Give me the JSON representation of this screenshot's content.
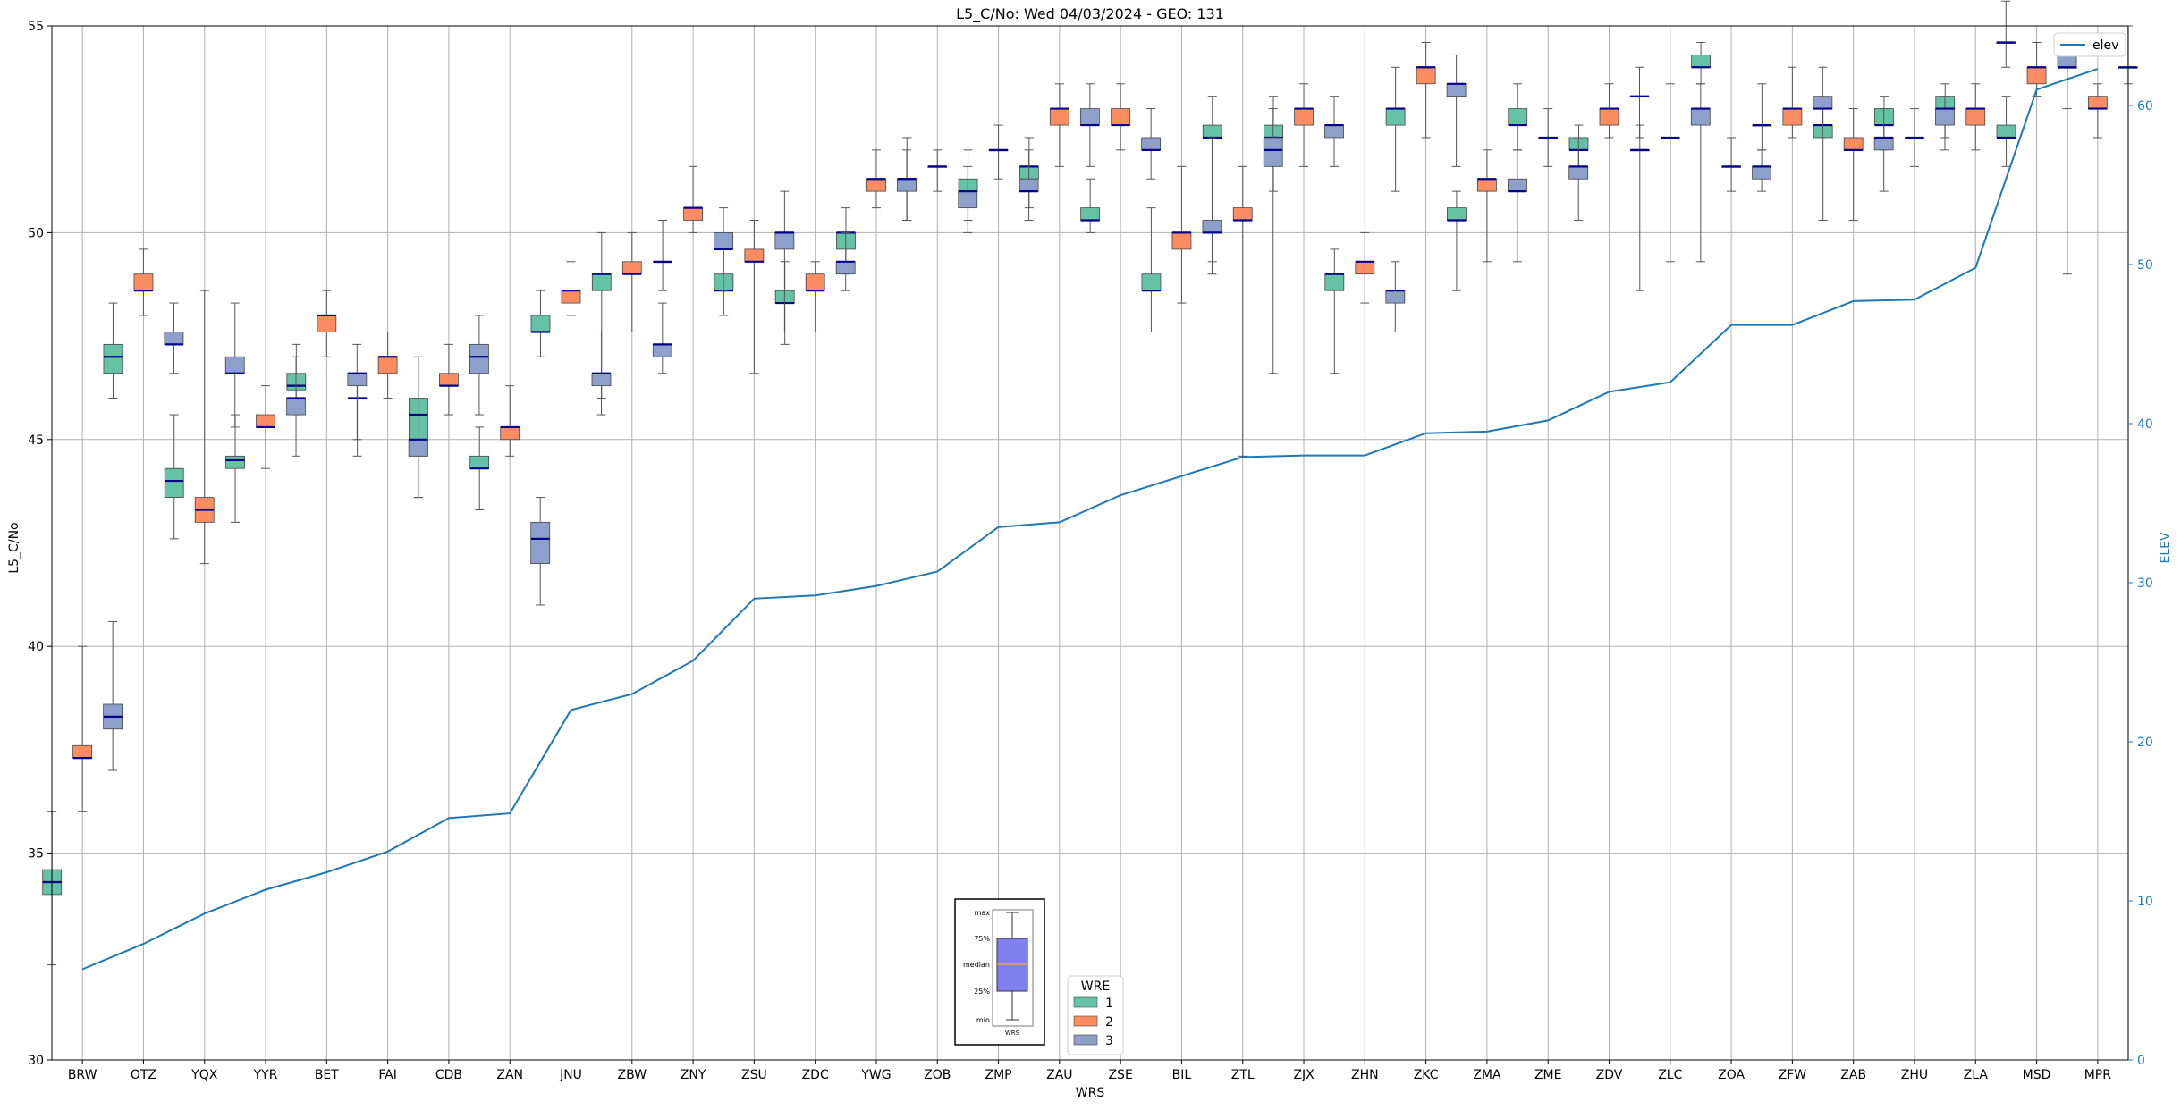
{
  "chart_data": {
    "type": "box",
    "title": "L5_C/No: Wed 04/03/2024 - GEO: 131",
    "xlabel": "WRS",
    "ylabel": "L5_C/No",
    "y2label": "ELEV",
    "ylim": [
      30,
      55
    ],
    "y2lim": [
      0,
      65
    ],
    "yticks": [
      "30",
      "35",
      "40",
      "45",
      "50",
      "55"
    ],
    "y2ticks": [
      "0",
      "10",
      "20",
      "30",
      "40",
      "50",
      "60"
    ],
    "grid": true,
    "categories": [
      "BRW",
      "OTZ",
      "YQX",
      "YYR",
      "BET",
      "FAI",
      "CDB",
      "ZAN",
      "JNU",
      "ZBW",
      "ZNY",
      "ZSU",
      "ZDC",
      "YWG",
      "ZOB",
      "ZMP",
      "ZAU",
      "ZSE",
      "BIL",
      "ZTL",
      "ZJX",
      "ZHN",
      "ZKC",
      "ZMA",
      "ZME",
      "ZDV",
      "ZLC",
      "ZOA",
      "ZFW",
      "ZAB",
      "ZHU",
      "ZLA",
      "MSD",
      "MPR"
    ],
    "colors": {
      "1": "#66c2a5",
      "2": "#fc8d62",
      "3": "#8da0cb",
      "median": "#00008b",
      "elev": "#1f77b4",
      "whisker": "#555555"
    },
    "series": [
      {
        "name": "1",
        "boxes": [
          [
            "BRW",
            32.3,
            34.0,
            34.3,
            34.6,
            36.0
          ],
          [
            "OTZ",
            46.0,
            46.6,
            47.0,
            47.3,
            48.3
          ],
          [
            "YQX",
            42.6,
            43.6,
            44.0,
            44.3,
            45.6
          ],
          [
            "YYR",
            43.0,
            44.3,
            44.5,
            44.6,
            45.6
          ],
          [
            "BET",
            45.6,
            46.2,
            46.3,
            46.6,
            47.3
          ],
          [
            "FAI",
            44.6,
            46.0,
            46.0,
            46.0,
            46.6
          ],
          [
            "CDB",
            43.6,
            44.6,
            45.6,
            46.0,
            47.0
          ],
          [
            "ZAN",
            43.3,
            44.3,
            44.3,
            44.6,
            45.3
          ],
          [
            "JNU",
            47.0,
            47.6,
            47.6,
            48.0,
            48.6
          ],
          [
            "ZBW",
            46.0,
            48.6,
            49.0,
            49.0,
            50.0
          ],
          [
            "ZNY",
            48.6,
            49.3,
            49.3,
            49.3,
            50.3
          ],
          [
            "ZSU",
            48.0,
            48.6,
            48.6,
            49.0,
            49.6
          ],
          [
            "ZDC",
            47.3,
            48.3,
            48.3,
            48.6,
            49.3
          ],
          [
            "YWG",
            49.0,
            49.6,
            50.0,
            50.0,
            50.6
          ],
          [
            "ZOB",
            50.3,
            51.0,
            51.3,
            51.3,
            52.3
          ],
          [
            "ZMP",
            50.3,
            51.0,
            51.0,
            51.3,
            52.0
          ],
          [
            "ZAU",
            50.6,
            51.3,
            51.6,
            51.6,
            52.3
          ],
          [
            "ZSE",
            50.0,
            50.3,
            50.3,
            50.6,
            51.3
          ],
          [
            "BIL",
            47.6,
            48.6,
            48.6,
            49.0,
            50.6
          ],
          [
            "ZTL",
            49.3,
            52.3,
            52.3,
            52.6,
            53.3
          ],
          [
            "ZJX",
            51.0,
            52.3,
            52.3,
            52.6,
            53.3
          ],
          [
            "ZHN",
            46.6,
            48.6,
            49.0,
            49.0,
            49.6
          ],
          [
            "ZKC",
            51.0,
            52.6,
            53.0,
            53.0,
            54.0
          ],
          [
            "ZMA",
            48.6,
            50.3,
            50.3,
            50.6,
            51.0
          ],
          [
            "ZME",
            52.0,
            52.6,
            52.6,
            53.0,
            53.6
          ],
          [
            "ZDV",
            51.6,
            52.0,
            52.0,
            52.3,
            52.6
          ],
          [
            "ZLC",
            48.6,
            52.0,
            52.0,
            52.0,
            52.6
          ],
          [
            "ZOA",
            53.6,
            54.0,
            54.0,
            54.3,
            54.6
          ],
          [
            "ZFW",
            52.0,
            52.6,
            52.6,
            52.6,
            53.6
          ],
          [
            "ZAB",
            50.3,
            52.3,
            52.6,
            52.6,
            53.0
          ],
          [
            "ZHU",
            52.0,
            52.6,
            52.6,
            53.0,
            53.3
          ],
          [
            "ZLA",
            52.3,
            53.0,
            53.0,
            53.3,
            53.6
          ],
          [
            "MSD",
            51.6,
            52.3,
            52.3,
            52.6,
            53.3
          ],
          [
            "MPR",
            49.0,
            54.0,
            54.0,
            54.0,
            54.6
          ]
        ]
      },
      {
        "name": "2",
        "boxes": [
          [
            "BRW",
            36.0,
            37.3,
            37.3,
            37.6,
            40.0
          ],
          [
            "OTZ",
            48.0,
            48.6,
            48.6,
            49.0,
            49.6
          ],
          [
            "YQX",
            42.0,
            43.0,
            43.3,
            43.6,
            48.6
          ],
          [
            "YYR",
            44.3,
            45.3,
            45.3,
            45.6,
            46.3
          ],
          [
            "BET",
            47.0,
            47.6,
            48.0,
            48.0,
            48.6
          ],
          [
            "FAI",
            46.0,
            46.6,
            47.0,
            47.0,
            47.6
          ],
          [
            "CDB",
            45.6,
            46.3,
            46.3,
            46.6,
            47.3
          ],
          [
            "ZAN",
            44.6,
            45.0,
            45.3,
            45.3,
            46.3
          ],
          [
            "JNU",
            48.0,
            48.3,
            48.6,
            48.6,
            49.3
          ],
          [
            "ZBW",
            47.6,
            49.0,
            49.0,
            49.3,
            50.0
          ],
          [
            "ZNY",
            50.0,
            50.3,
            50.6,
            50.6,
            51.6
          ],
          [
            "ZSU",
            46.6,
            49.3,
            49.3,
            49.6,
            50.3
          ],
          [
            "ZDC",
            47.6,
            48.6,
            48.6,
            49.0,
            49.3
          ],
          [
            "YWG",
            50.6,
            51.0,
            51.3,
            51.3,
            52.0
          ],
          [
            "ZOB",
            51.0,
            51.6,
            51.6,
            51.6,
            52.0
          ],
          [
            "ZMP",
            51.3,
            52.0,
            52.0,
            52.0,
            52.6
          ],
          [
            "ZAU",
            51.6,
            52.6,
            53.0,
            53.0,
            53.6
          ],
          [
            "ZSE",
            52.0,
            52.6,
            52.6,
            53.0,
            53.6
          ],
          [
            "BIL",
            48.3,
            49.6,
            50.0,
            50.0,
            51.6
          ],
          [
            "ZTL",
            44.6,
            50.3,
            50.3,
            50.6,
            51.6
          ],
          [
            "ZJX",
            51.6,
            52.6,
            53.0,
            53.0,
            53.6
          ],
          [
            "ZHN",
            48.3,
            49.0,
            49.3,
            49.3,
            50.0
          ],
          [
            "ZKC",
            52.3,
            53.6,
            54.0,
            54.0,
            54.6
          ],
          [
            "ZMA",
            49.3,
            51.0,
            51.3,
            51.3,
            52.0
          ],
          [
            "ZME",
            51.6,
            52.3,
            52.3,
            52.3,
            53.0
          ],
          [
            "ZDV",
            52.3,
            52.6,
            53.0,
            53.0,
            53.6
          ],
          [
            "ZLC",
            49.3,
            52.3,
            52.3,
            52.3,
            53.6
          ],
          [
            "ZOA",
            51.0,
            51.6,
            51.6,
            51.6,
            52.3
          ],
          [
            "ZFW",
            52.3,
            52.6,
            53.0,
            53.0,
            54.0
          ],
          [
            "ZAB",
            50.3,
            52.0,
            52.0,
            52.3,
            53.0
          ],
          [
            "ZHU",
            51.6,
            52.3,
            52.3,
            52.3,
            53.0
          ],
          [
            "ZLA",
            52.0,
            52.6,
            53.0,
            53.0,
            53.6
          ],
          [
            "MSD",
            53.3,
            53.6,
            54.0,
            54.0,
            54.6
          ],
          [
            "MPR",
            52.3,
            53.0,
            53.0,
            53.3,
            53.6
          ]
        ]
      },
      {
        "name": "3",
        "boxes": [
          [
            "BRW",
            37.0,
            38.0,
            38.3,
            38.6,
            40.6
          ],
          [
            "OTZ",
            46.6,
            47.3,
            47.3,
            47.6,
            48.3
          ],
          [
            "YQX",
            45.3,
            46.6,
            46.6,
            47.0,
            48.3
          ],
          [
            "YYR",
            44.6,
            45.6,
            46.0,
            46.0,
            47.0
          ],
          [
            "BET",
            45.0,
            46.3,
            46.6,
            46.6,
            47.3
          ],
          [
            "FAI",
            43.6,
            44.6,
            45.0,
            45.0,
            46.0
          ],
          [
            "CDB",
            45.6,
            46.6,
            47.0,
            47.3,
            48.0
          ],
          [
            "ZAN",
            41.0,
            42.0,
            42.6,
            43.0,
            43.6
          ],
          [
            "JNU",
            45.6,
            46.3,
            46.6,
            46.6,
            47.6
          ],
          [
            "ZBW",
            46.6,
            47.0,
            47.3,
            47.3,
            48.3
          ],
          [
            "ZNY",
            48.6,
            49.6,
            49.6,
            50.0,
            50.6
          ],
          [
            "ZSU",
            47.6,
            49.6,
            50.0,
            50.0,
            51.0
          ],
          [
            "ZDC",
            48.6,
            49.0,
            49.3,
            49.3,
            50.0
          ],
          [
            "YWG",
            50.3,
            51.0,
            51.3,
            51.3,
            52.0
          ],
          [
            "ZOB",
            50.0,
            50.6,
            51.0,
            51.0,
            51.6
          ],
          [
            "ZMP",
            50.3,
            51.0,
            51.0,
            51.3,
            52.0
          ],
          [
            "ZAU",
            51.6,
            52.6,
            52.6,
            53.0,
            53.6
          ],
          [
            "ZSE",
            51.3,
            52.0,
            52.0,
            52.3,
            53.0
          ],
          [
            "BIL",
            49.0,
            50.0,
            50.0,
            50.3,
            52.3
          ],
          [
            "ZTL",
            46.6,
            51.6,
            52.0,
            52.3,
            53.0
          ],
          [
            "ZJX",
            51.6,
            52.3,
            52.6,
            52.6,
            53.3
          ],
          [
            "ZHN",
            47.6,
            48.3,
            48.6,
            48.6,
            49.3
          ],
          [
            "ZKC",
            51.6,
            53.3,
            53.6,
            53.6,
            54.3
          ],
          [
            "ZMA",
            49.3,
            51.0,
            51.0,
            51.3,
            52.0
          ],
          [
            "ZME",
            50.3,
            51.3,
            51.6,
            51.6,
            52.3
          ],
          [
            "ZDV",
            52.3,
            53.3,
            53.3,
            53.3,
            54.0
          ],
          [
            "ZLC",
            49.3,
            52.6,
            53.0,
            53.0,
            53.6
          ],
          [
            "ZOA",
            51.0,
            51.3,
            51.6,
            51.6,
            52.0
          ],
          [
            "ZFW",
            52.3,
            53.0,
            53.0,
            53.3,
            54.0
          ],
          [
            "ZAB",
            51.0,
            52.0,
            52.3,
            52.3,
            53.0
          ],
          [
            "ZHU",
            52.0,
            52.6,
            53.0,
            53.0,
            53.3
          ],
          [
            "ZLA",
            54.0,
            54.6,
            54.6,
            54.6,
            55.6
          ],
          [
            "MSD",
            53.0,
            54.0,
            54.0,
            54.3,
            55.0
          ],
          [
            "MPR",
            53.6,
            54.0,
            54.0,
            54.0,
            55.0
          ]
        ]
      }
    ],
    "elev": {
      "name": "elev",
      "values": [
        5.7,
        7.3,
        9.2,
        10.7,
        11.8,
        13.1,
        15.2,
        15.5,
        22.0,
        23.0,
        25.1,
        29.0,
        29.2,
        29.8,
        30.7,
        33.5,
        33.8,
        35.5,
        36.7,
        37.9,
        38.0,
        38.0,
        39.4,
        39.5,
        40.2,
        42.0,
        42.6,
        46.2,
        46.2,
        47.7,
        47.8,
        49.8,
        61.0,
        62.3
      ]
    },
    "legend": {
      "title": "WRE",
      "labels": [
        "1",
        "2",
        "3"
      ],
      "placement": "bottom-center"
    },
    "legend2": {
      "labels": [
        "elev"
      ],
      "placement": "top-right"
    },
    "inset": {
      "labels": [
        "max",
        "75%",
        "median",
        "25%",
        "min"
      ],
      "xlabel": "WRS"
    }
  }
}
